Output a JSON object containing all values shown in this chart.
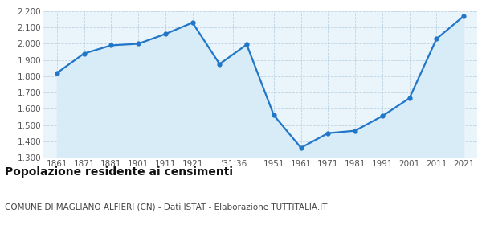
{
  "years": [
    1861,
    1871,
    1881,
    1901,
    1911,
    1921,
    1931,
    1936,
    1951,
    1961,
    1971,
    1981,
    1991,
    2001,
    2011,
    2021
  ],
  "values": [
    1820,
    1940,
    1990,
    2000,
    2060,
    2130,
    1875,
    1995,
    1560,
    1360,
    1450,
    1465,
    1555,
    1665,
    2030,
    2170
  ],
  "tick_labels": [
    "1861",
    "1871",
    "1881",
    "1901",
    "1911",
    "1921",
    "’31’36",
    "1951",
    "1961",
    "1971",
    "1981",
    "1991",
    "2001",
    "2011",
    "2021"
  ],
  "line_color": "#2176c8",
  "fill_color": "#d8ecf8",
  "marker_color": "#2176c8",
  "background_color": "#eaf4fb",
  "grid_color": "#b8cfe0",
  "ylim": [
    1300,
    2200
  ],
  "yticks": [
    1300,
    1400,
    1500,
    1600,
    1700,
    1800,
    1900,
    2000,
    2100,
    2200
  ],
  "title": "Popolazione residente ai censimenti",
  "subtitle": "COMUNE DI MAGLIANO ALFIERI (CN) - Dati ISTAT - Elaborazione TUTTITALIA.IT",
  "title_fontsize": 10,
  "subtitle_fontsize": 7.5,
  "label_fontsize": 7.5,
  "ytick_fontsize": 7.5
}
